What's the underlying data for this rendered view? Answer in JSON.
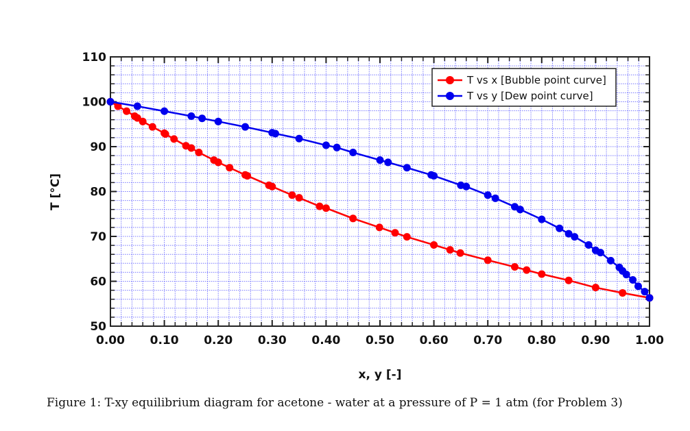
{
  "caption": "Figure 1: T-xy equilibrium diagram for acetone - water at a pressure of P = 1 atm (for Problem 3)",
  "colors": {
    "bubble": "#ff0000",
    "dew": "#0000ee",
    "grid": "#4d4dff",
    "axis": "#222222"
  },
  "chart_data": {
    "type": "line",
    "title": "",
    "xlabel": "x, y [-]",
    "ylabel": "T [°C]",
    "xlim": [
      0.0,
      1.0
    ],
    "ylim": [
      50,
      110
    ],
    "x_ticks": [
      "0.00",
      "0.10",
      "0.20",
      "0.30",
      "0.40",
      "0.50",
      "0.60",
      "0.70",
      "0.80",
      "0.90",
      "1.00"
    ],
    "y_ticks": [
      "50",
      "60",
      "70",
      "80",
      "90",
      "100",
      "110"
    ],
    "grid": true,
    "minor_grid": {
      "x_step": 0.02,
      "y_step": 2
    },
    "legend_position": "upper right",
    "series": [
      {
        "name": "T vs x [Bubble point curve]",
        "color": "#ff0000",
        "marker": "circle",
        "x": [
          0.0,
          0.014,
          0.03,
          0.045,
          0.05,
          0.06,
          0.078,
          0.1,
          0.102,
          0.118,
          0.14,
          0.15,
          0.164,
          0.192,
          0.2,
          0.221,
          0.25,
          0.254,
          0.294,
          0.3,
          0.337,
          0.35,
          0.388,
          0.4,
          0.45,
          0.499,
          0.528,
          0.55,
          0.6,
          0.63,
          0.649,
          0.7,
          0.75,
          0.772,
          0.8,
          0.85,
          0.9,
          0.95,
          1.0
        ],
        "y": [
          100.0,
          99.0,
          97.9,
          96.8,
          96.4,
          95.6,
          94.4,
          93.0,
          92.8,
          91.7,
          90.2,
          89.7,
          88.7,
          87.0,
          86.5,
          85.3,
          83.7,
          83.5,
          81.4,
          81.1,
          79.2,
          78.6,
          76.7,
          76.3,
          74.0,
          72.0,
          70.8,
          69.9,
          68.1,
          67.0,
          66.3,
          64.7,
          63.2,
          62.5,
          61.6,
          60.2,
          58.6,
          57.4,
          56.3
        ]
      },
      {
        "name": "T vs y [Dew point curve]",
        "color": "#0000ee",
        "marker": "circle",
        "x": [
          0.0,
          0.05,
          0.1,
          0.15,
          0.17,
          0.2,
          0.25,
          0.3,
          0.306,
          0.35,
          0.4,
          0.42,
          0.45,
          0.5,
          0.515,
          0.55,
          0.595,
          0.6,
          0.65,
          0.66,
          0.7,
          0.714,
          0.75,
          0.76,
          0.8,
          0.833,
          0.85,
          0.861,
          0.887,
          0.9,
          0.909,
          0.928,
          0.944,
          0.95,
          0.957,
          0.969,
          0.979,
          0.991,
          1.0
        ],
        "y": [
          100.0,
          99.0,
          97.9,
          96.8,
          96.3,
          95.6,
          94.4,
          93.1,
          92.9,
          91.8,
          90.3,
          89.8,
          88.7,
          87.0,
          86.5,
          85.3,
          83.7,
          83.5,
          81.4,
          81.1,
          79.2,
          78.5,
          76.6,
          76.0,
          73.8,
          71.8,
          70.6,
          69.9,
          68.1,
          66.9,
          66.4,
          64.6,
          63.1,
          62.3,
          61.5,
          60.3,
          58.9,
          57.7,
          56.3
        ]
      }
    ]
  }
}
